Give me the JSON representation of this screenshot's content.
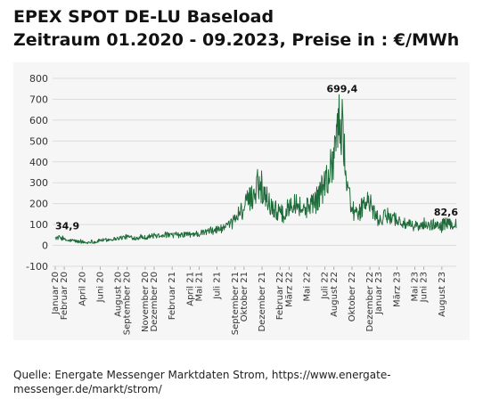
{
  "header": {
    "title": "EPEX SPOT DE-LU Baseload",
    "subtitle": "Zeitraum 01.2020 - 09.2023, Preise in : €/MWh"
  },
  "source": {
    "text": "Quelle: Energate Messenger Marktdaten Strom, https://www.energate-messenger.de/markt/strom/"
  },
  "colors": {
    "series": "#1f6b3a",
    "panel_background": "#f6f6f6",
    "gridline": "#dcdcdc",
    "text": "#333333"
  },
  "chart_data": {
    "type": "line",
    "title": "EPEX SPOT DE-LU Baseload",
    "subtitle": "Zeitraum 01.2020 - 09.2023, Preise in : €/MWh",
    "xlabel": "",
    "ylabel": "",
    "ylim": [
      -100,
      800
    ],
    "yticks": [
      -100,
      0,
      100,
      200,
      300,
      400,
      500,
      600,
      700,
      800
    ],
    "grid": true,
    "legend": "none",
    "x_tick_labels": [
      "Januar 20",
      "Februar 20",
      "April 20",
      "Juni 20",
      "August 20",
      "September 20",
      "November 20",
      "Dezember 20",
      "Februar 21",
      "April 21",
      "Mai 21",
      "Juli 21",
      "September 21",
      "Oktober 21",
      "Dezember 21",
      "Februar 22",
      "März 22",
      "Mai 22",
      "Juli 22",
      "August 22",
      "Oktober 22",
      "Dezember 22",
      "Januar 23",
      "März 23",
      "Mai 23",
      "Juni 23",
      "August 23"
    ],
    "x_tick_months": [
      0,
      1,
      3,
      5,
      7,
      8,
      10,
      11,
      13,
      15,
      16,
      18,
      20,
      21,
      23,
      25,
      26,
      28,
      30,
      31,
      33,
      35,
      36,
      38,
      40,
      41,
      43
    ],
    "x_domain_months": [
      0,
      44.6
    ],
    "series": [
      {
        "values_by_month": [
          [
            0,
            35
          ],
          [
            0.5,
            38
          ],
          [
            1,
            28
          ],
          [
            1.5,
            22
          ],
          [
            2,
            24
          ],
          [
            2.5,
            18
          ],
          [
            3,
            17
          ],
          [
            3.5,
            12
          ],
          [
            4,
            20
          ],
          [
            4.5,
            15
          ],
          [
            5,
            26
          ],
          [
            5.5,
            24
          ],
          [
            6,
            28
          ],
          [
            6.5,
            31
          ],
          [
            7,
            34
          ],
          [
            7.5,
            38
          ],
          [
            8,
            42
          ],
          [
            8.5,
            38
          ],
          [
            9,
            35
          ],
          [
            9.5,
            41
          ],
          [
            10,
            38
          ],
          [
            10.5,
            44
          ],
          [
            11,
            46
          ],
          [
            11.5,
            48
          ],
          [
            12,
            52
          ],
          [
            12.5,
            50
          ],
          [
            13,
            48
          ],
          [
            13.5,
            51
          ],
          [
            14,
            47
          ],
          [
            14.5,
            55
          ],
          [
            15,
            50
          ],
          [
            15.5,
            57
          ],
          [
            16,
            54
          ],
          [
            16.5,
            62
          ],
          [
            17,
            66
          ],
          [
            17.5,
            72
          ],
          [
            18,
            75
          ],
          [
            18.5,
            82
          ],
          [
            19,
            88
          ],
          [
            19.5,
            95
          ],
          [
            20,
            130
          ],
          [
            20.5,
            160
          ],
          [
            21,
            175
          ],
          [
            21.5,
            220
          ],
          [
            22,
            230
          ],
          [
            22.5,
            310
          ],
          [
            23,
            260
          ],
          [
            23.5,
            230
          ],
          [
            24,
            190
          ],
          [
            24.5,
            170
          ],
          [
            25,
            160
          ],
          [
            25.5,
            140
          ],
          [
            26,
            190
          ],
          [
            26.5,
            220
          ],
          [
            27,
            200
          ],
          [
            27.5,
            170
          ],
          [
            28,
            180
          ],
          [
            28.5,
            210
          ],
          [
            29,
            210
          ],
          [
            29.5,
            260
          ],
          [
            30,
            300
          ],
          [
            30.5,
            350
          ],
          [
            31,
            450
          ],
          [
            31.5,
            600
          ],
          [
            32,
            500
          ],
          [
            32.5,
            300
          ],
          [
            33,
            180
          ],
          [
            33.5,
            140
          ],
          [
            34,
            170
          ],
          [
            34.5,
            210
          ],
          [
            35,
            200
          ],
          [
            35.5,
            150
          ],
          [
            36,
            120
          ],
          [
            36.5,
            130
          ],
          [
            37,
            145
          ],
          [
            37.5,
            140
          ],
          [
            38,
            120
          ],
          [
            38.5,
            110
          ],
          [
            39,
            100
          ],
          [
            39.5,
            95
          ],
          [
            40,
            95
          ],
          [
            40.5,
            90
          ],
          [
            41,
            90
          ],
          [
            41.5,
            95
          ],
          [
            42,
            100
          ],
          [
            42.5,
            98
          ],
          [
            43,
            100
          ],
          [
            43.5,
            105
          ],
          [
            44,
            100
          ],
          [
            44.6,
            110
          ]
        ],
        "annotations": [
          {
            "label": "34,9",
            "value": 34.9,
            "month": 0
          },
          {
            "label": "699,4",
            "value": 699.4,
            "month": 31.9
          },
          {
            "label": "82,6",
            "value": 82.6,
            "month": 44.4
          }
        ]
      }
    ]
  }
}
